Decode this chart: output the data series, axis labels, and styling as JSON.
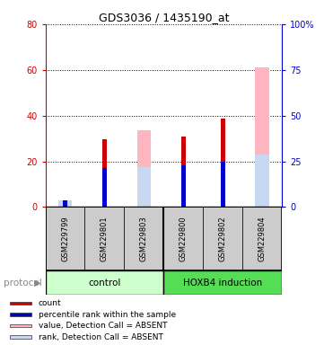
{
  "title": "GDS3036 / 1435190_at",
  "sample_labels": [
    "GSM229799",
    "GSM229801",
    "GSM229803",
    "GSM229800",
    "GSM229802",
    "GSM229804"
  ],
  "count_values": [
    1.5,
    29.5,
    0,
    31.0,
    38.5,
    0
  ],
  "percentile_values": [
    3.5,
    21.5,
    0,
    23.0,
    25.0,
    0
  ],
  "absent_value_bars": [
    0,
    0,
    33.5,
    0,
    0,
    61.0
  ],
  "absent_rank_bars": [
    3.5,
    0,
    22.0,
    0,
    0,
    28.5
  ],
  "ylim_left": [
    0,
    80
  ],
  "ylim_right": [
    0,
    100
  ],
  "yticks_left": [
    0,
    20,
    40,
    60,
    80
  ],
  "ytick_labels_left": [
    "0",
    "20",
    "40",
    "60",
    "80"
  ],
  "yticks_right": [
    0,
    25,
    50,
    75,
    100
  ],
  "ytick_labels_right": [
    "0",
    "25",
    "50",
    "75",
    "100%"
  ],
  "left_axis_color": "#cc0000",
  "right_axis_color": "#0000cc",
  "count_color": "#cc0000",
  "percentile_color": "#0000cc",
  "absent_value_color": "#ffb6c1",
  "absent_rank_color": "#c8d8f0",
  "control_group_color": "#ccffcc",
  "hoxb4_group_color": "#55dd55",
  "sample_box_color": "#cccccc",
  "protocol_label": "protocol",
  "control_label": "control",
  "hoxb4_label": "HOXB4 induction",
  "legend_items": [
    {
      "label": "count",
      "color": "#cc0000"
    },
    {
      "label": "percentile rank within the sample",
      "color": "#0000cc"
    },
    {
      "label": "value, Detection Call = ABSENT",
      "color": "#ffb6c1"
    },
    {
      "label": "rank, Detection Call = ABSENT",
      "color": "#c8d8f0"
    }
  ]
}
